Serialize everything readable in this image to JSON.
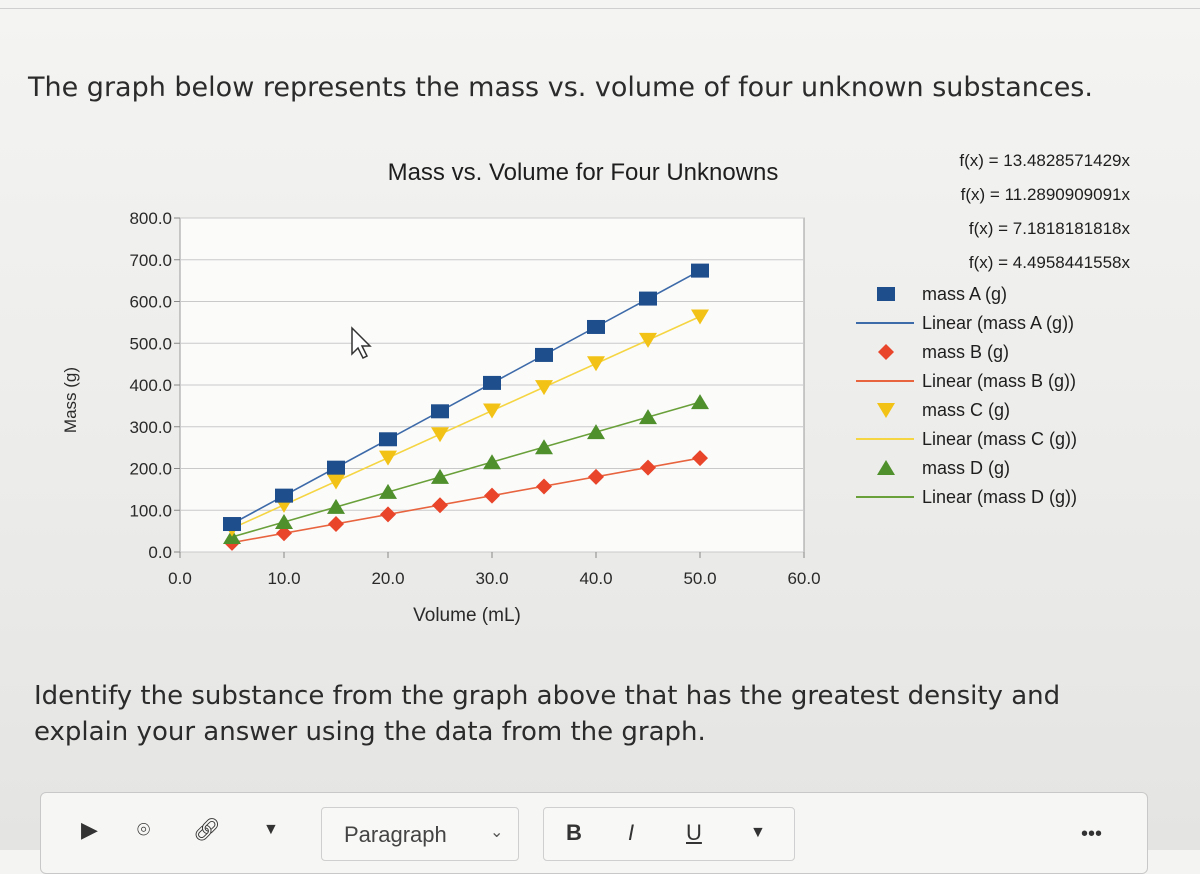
{
  "question": {
    "intro": "The graph below represents the mass vs. volume of four unknown substances.",
    "prompt": "Identify the substance from the graph above that has the greatest density and explain your answer using the data from the graph."
  },
  "chart_data": {
    "type": "scatter",
    "title": "Mass vs. Volume for Four Unknowns",
    "xlabel": "Volume (mL)",
    "ylabel": "Mass (g)",
    "xlim": [
      0,
      60
    ],
    "ylim": [
      0,
      800
    ],
    "x_ticks": [
      "0.0",
      "10.0",
      "20.0",
      "30.0",
      "40.0",
      "50.0",
      "60.0"
    ],
    "y_ticks": [
      "0.0",
      "100.0",
      "200.0",
      "300.0",
      "400.0",
      "500.0",
      "600.0",
      "700.0",
      "800.0"
    ],
    "grid": "horizontal",
    "legend_position": "right",
    "x": [
      5,
      10,
      15,
      20,
      25,
      30,
      35,
      40,
      45,
      50
    ],
    "series": [
      {
        "name": "mass A (g)",
        "trend_name": "Linear (mass A (g))",
        "equation": "f(x) = 13.4828571429x",
        "marker": "square",
        "color": "#1f4e8c",
        "line_color": "#3d6aa8",
        "values": [
          67,
          135,
          202,
          270,
          337,
          405,
          472,
          539,
          607,
          674
        ]
      },
      {
        "name": "mass B (g)",
        "trend_name": "Linear (mass B (g))",
        "equation": "f(x) = 4.4958441558x",
        "marker": "diamond",
        "color": "#e8452a",
        "line_color": "#e8643f",
        "values": [
          22,
          45,
          67,
          90,
          112,
          135,
          157,
          180,
          202,
          225
        ]
      },
      {
        "name": "mass C (g)",
        "trend_name": "Linear (mass C (g))",
        "equation": "f(x) = 11.2890909091x",
        "marker": "triangle-down",
        "color": "#f2c316",
        "line_color": "#f5d542",
        "values": [
          56,
          113,
          169,
          226,
          282,
          339,
          395,
          452,
          508,
          564
        ]
      },
      {
        "name": "mass D (g)",
        "trend_name": "Linear (mass D (g))",
        "equation": "f(x) = 7.1818181818x",
        "marker": "triangle-up",
        "color": "#4f8f2c",
        "line_color": "#6aa03a",
        "values": [
          36,
          72,
          108,
          144,
          180,
          215,
          251,
          287,
          323,
          359
        ]
      }
    ],
    "equation_order": [
      0,
      2,
      3,
      1
    ],
    "pointer_icon": "mouse-cursor-icon"
  },
  "editor": {
    "paragraph_label": "Paragraph",
    "bold_label": "B",
    "italic_label": "I",
    "underline_label": "U",
    "more_label": "•••",
    "icons": [
      "media-icon",
      "camera-icon",
      "link-icon",
      "dropdown-icon",
      "chevron-down-icon"
    ]
  }
}
